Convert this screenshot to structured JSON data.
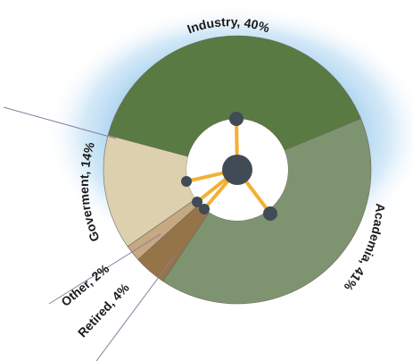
{
  "chart_data": {
    "type": "pie",
    "slices": [
      {
        "label": "Industry, 40%",
        "value": 40,
        "color": "#5a7a44"
      },
      {
        "label": "Academia, 41%",
        "value": 41,
        "color": "#7e9470"
      },
      {
        "label": "Retired, 4%",
        "value": 4,
        "color": "#96744a"
      },
      {
        "label": "Other, 2%",
        "value": 2,
        "color": "#c6a882"
      },
      {
        "label": "Goverment, 14%",
        "value": 14,
        "color": "#ddd0ae"
      }
    ],
    "colors": {
      "hub": "#414b55",
      "spoke": "#f2b035",
      "halo": "#8ec4ea"
    }
  }
}
